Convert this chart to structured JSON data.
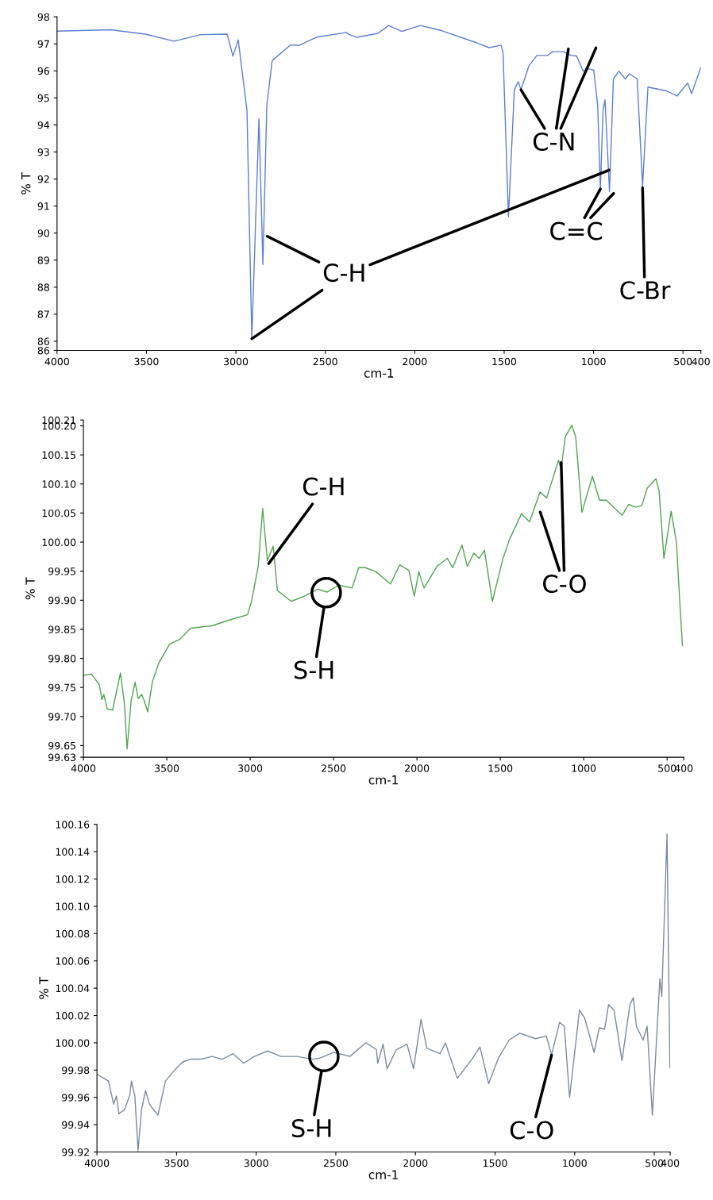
{
  "chart_data": [
    {
      "type": "line",
      "xlabel": "cm-1",
      "ylabel": "% T",
      "xlim": [
        4000,
        400
      ],
      "xticks": [
        4000,
        3500,
        3000,
        2500,
        2000,
        1500,
        1000,
        500,
        400
      ],
      "ylim": [
        85.66,
        98
      ],
      "yticks": [
        {
          "value": 85.66,
          "label": "86"
        },
        86,
        87,
        88,
        89,
        90,
        91,
        92,
        93,
        94,
        95,
        96,
        97,
        98
      ],
      "grid": false,
      "legend": false,
      "series": [
        {
          "color": "#5a7fd2",
          "x": [
            4000,
            3700,
            3507,
            3345,
            3197,
            3049,
            3016,
            2987,
            2938,
            2911,
            2871,
            2849,
            2827,
            2797,
            2694,
            2649,
            2546,
            2383,
            2368,
            2323,
            2205,
            2146,
            2072,
            1969,
            1850,
            1658,
            1584,
            1517,
            1506,
            1476,
            1443,
            1421,
            1406,
            1362,
            1317,
            1258,
            1229,
            1170,
            1125,
            1095,
            1058,
            1029,
            999,
            977,
            962,
            947,
            936,
            911,
            889,
            859,
            822,
            800,
            756,
            726,
            696,
            592,
            533,
            474,
            452,
            400
          ],
          "values": [
            97.47,
            97.52,
            97.36,
            97.1,
            97.34,
            97.36,
            96.54,
            97.15,
            94.54,
            86.09,
            94.23,
            88.84,
            94.73,
            96.38,
            96.96,
            96.94,
            97.25,
            97.42,
            97.35,
            97.24,
            97.39,
            97.68,
            97.46,
            97.68,
            97.49,
            97.05,
            96.86,
            96.95,
            96.66,
            90.6,
            95.3,
            95.6,
            95.3,
            96.18,
            96.57,
            96.57,
            96.71,
            96.71,
            96.57,
            96.55,
            95.99,
            96.08,
            96.03,
            94.73,
            91.63,
            94.54,
            94.93,
            91.53,
            95.7,
            95.99,
            95.7,
            95.89,
            95.7,
            91.73,
            95.4,
            95.26,
            95.07,
            95.55,
            95.16,
            96.13
          ]
        }
      ],
      "annotations": [
        {
          "text": "C-H",
          "x": 2911,
          "y": 86.09
        },
        {
          "text": "C-N",
          "x": 1406,
          "y": 95.3
        },
        {
          "text": "C=C",
          "x": 962,
          "y": 91.63
        },
        {
          "text": "C-Br",
          "x": 726,
          "y": 91.68
        }
      ]
    },
    {
      "type": "line",
      "xlabel": "cm-1",
      "ylabel": "% T",
      "xlim": [
        4000,
        400
      ],
      "xticks": [
        4000,
        3500,
        3000,
        2500,
        2000,
        1500,
        1000,
        500,
        400
      ],
      "ylim": [
        99.63,
        100.21
      ],
      "yticks": [
        {
          "value": 99.63,
          "label": "99.63"
        },
        {
          "value": 99.65,
          "label": "99.65"
        },
        {
          "value": 99.7,
          "label": "99.70"
        },
        {
          "value": 99.75,
          "label": "99.75"
        },
        {
          "value": 99.8,
          "label": "99.80"
        },
        {
          "value": 99.85,
          "label": "99.85"
        },
        {
          "value": 99.9,
          "label": "99.90"
        },
        {
          "value": 99.95,
          "label": "99.95"
        },
        {
          "value": 100.0,
          "label": "100.00"
        },
        {
          "value": 100.05,
          "label": "100.05"
        },
        {
          "value": 100.1,
          "label": "100.10"
        },
        {
          "value": 100.15,
          "label": "100.15"
        },
        {
          "value": 100.2,
          "label": "100.20"
        },
        {
          "value": 100.21,
          "label": "100.21"
        }
      ],
      "grid": false,
      "legend": false,
      "series": [
        {
          "color": "#4fa64f",
          "x": [
            4000,
            3952,
            3905,
            3889,
            3878,
            3857,
            3825,
            3778,
            3754,
            3738,
            3714,
            3690,
            3671,
            3651,
            3635,
            3614,
            3587,
            3548,
            3484,
            3421,
            3357,
            3230,
            3103,
            3016,
            2992,
            2952,
            2925,
            2897,
            2862,
            2837,
            2754,
            2675,
            2595,
            2540,
            2468,
            2389,
            2349,
            2310,
            2246,
            2159,
            2103,
            2048,
            2016,
            1989,
            1957,
            1881,
            1817,
            1786,
            1730,
            1698,
            1659,
            1627,
            1595,
            1548,
            1484,
            1444,
            1373,
            1325,
            1262,
            1222,
            1151,
            1135,
            1111,
            1071,
            1048,
            1011,
            948,
            905,
            865,
            770,
            730,
            690,
            651,
            619,
            567,
            548,
            519,
            476,
            444,
            424,
            408
          ],
          "values": [
            99.771,
            99.773,
            99.755,
            99.729,
            99.738,
            99.713,
            99.711,
            99.775,
            99.722,
            99.644,
            99.727,
            99.759,
            99.731,
            99.738,
            99.727,
            99.708,
            99.759,
            99.792,
            99.824,
            99.833,
            99.852,
            99.856,
            99.868,
            99.875,
            99.898,
            99.958,
            100.058,
            99.968,
            99.993,
            99.917,
            99.898,
            99.907,
            99.919,
            99.914,
            99.926,
            99.921,
            99.956,
            99.956,
            99.949,
            99.928,
            99.961,
            99.951,
            99.907,
            99.949,
            99.921,
            99.958,
            99.972,
            99.956,
            99.995,
            99.958,
            99.981,
            99.972,
            99.986,
            99.898,
            99.972,
            100.005,
            100.049,
            100.035,
            100.086,
            100.076,
            100.141,
            100.125,
            100.181,
            100.201,
            100.181,
            100.051,
            100.113,
            100.072,
            100.072,
            100.046,
            100.065,
            100.06,
            100.063,
            100.093,
            100.109,
            100.088,
            99.972,
            100.053,
            100.0,
            99.898,
            99.822
          ]
        }
      ],
      "annotations": [
        {
          "text": "C-H",
          "x": 2889,
          "y": 99.963
        },
        {
          "text": "S-H",
          "x": 2544,
          "y": 99.913
        },
        {
          "text": "C-O",
          "x": 1135,
          "y": 100.137
        }
      ]
    },
    {
      "type": "line",
      "xlabel": "cm-1",
      "ylabel": "% T",
      "xlim": [
        4000,
        400
      ],
      "xticks": [
        4000,
        3500,
        3000,
        2500,
        2000,
        1500,
        1000,
        500,
        400
      ],
      "ylim": [
        99.92,
        100.16
      ],
      "yticks": [
        {
          "value": 99.92,
          "label": "99.92"
        },
        {
          "value": 99.94,
          "label": "99.94"
        },
        {
          "value": 99.96,
          "label": "99.96"
        },
        {
          "value": 99.98,
          "label": "99.98"
        },
        {
          "value": 100.0,
          "label": "100.00"
        },
        {
          "value": 100.02,
          "label": "100.02"
        },
        {
          "value": 100.04,
          "label": "100.04"
        },
        {
          "value": 100.06,
          "label": "100.06"
        },
        {
          "value": 100.08,
          "label": "100.08"
        },
        {
          "value": 100.1,
          "label": "100.10"
        },
        {
          "value": 100.12,
          "label": "100.12"
        },
        {
          "value": 100.14,
          "label": "100.14"
        },
        {
          "value": 100.16,
          "label": "100.16"
        }
      ],
      "grid": false,
      "legend": false,
      "series": [
        {
          "color": "#7b8b9a",
          "x": [
            4000,
            3928,
            3895,
            3878,
            3862,
            3828,
            3795,
            3783,
            3762,
            3742,
            3720,
            3695,
            3670,
            3645,
            3617,
            3570,
            3512,
            3462,
            3412,
            3345,
            3278,
            3212,
            3145,
            3078,
            3012,
            2928,
            2845,
            2745,
            2645,
            2595,
            2512,
            2412,
            2312,
            2245,
            2237,
            2203,
            2178,
            2120,
            2053,
            2012,
            1965,
            1928,
            1845,
            1812,
            1737,
            1645,
            1595,
            1540,
            1478,
            1412,
            1345,
            1245,
            1178,
            1145,
            1095,
            1065,
            1032,
            970,
            937,
            878,
            845,
            812,
            787,
            753,
            703,
            653,
            632,
            612,
            570,
            545,
            512,
            465,
            453,
            420,
            402
          ],
          "values": [
            99.977,
            99.972,
            99.955,
            99.961,
            99.948,
            99.951,
            99.961,
            99.972,
            99.961,
            99.921,
            99.951,
            99.965,
            99.955,
            99.951,
            99.947,
            99.972,
            99.98,
            99.986,
            99.988,
            99.988,
            99.99,
            99.988,
            99.992,
            99.985,
            99.99,
            99.994,
            99.99,
            99.99,
            99.988,
            99.989,
            99.993,
            99.99,
            100.0,
            99.995,
            99.985,
            99.999,
            99.981,
            99.995,
            99.999,
            99.981,
            100.017,
            99.996,
            99.992,
            100.0,
            99.974,
            99.988,
            99.997,
            99.97,
            99.989,
            100.002,
            100.007,
            100.003,
            100.005,
            99.991,
            100.015,
            100.012,
            99.96,
            100.024,
            100.018,
            99.993,
            100.011,
            100.01,
            100.028,
            100.024,
            99.987,
            100.028,
            100.033,
            100.012,
            100.002,
            100.012,
            99.947,
            100.047,
            100.034,
            100.153,
            99.982
          ]
        }
      ],
      "annotations": [
        {
          "text": "S-H",
          "x": 2575,
          "y": 99.99
        },
        {
          "text": "C-O",
          "x": 1145,
          "y": 99.991
        }
      ]
    }
  ]
}
